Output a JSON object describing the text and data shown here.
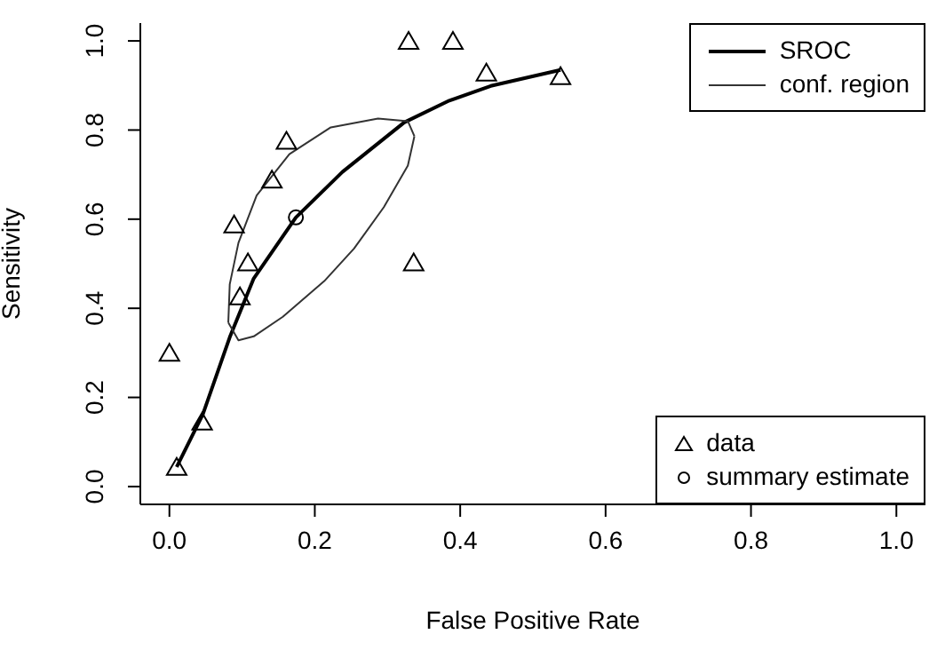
{
  "chart_data": {
    "type": "scatter",
    "xlabel": "False Positive Rate",
    "ylabel": "Sensitivity",
    "xlim": [
      -0.04,
      1.04
    ],
    "ylim": [
      -0.04,
      1.04
    ],
    "xticks": [
      {
        "value": 0,
        "label": "0.0"
      },
      {
        "value": 0.2,
        "label": "0.2"
      },
      {
        "value": 0.4,
        "label": "0.4"
      },
      {
        "value": 0.6,
        "label": "0.6"
      },
      {
        "value": 0.8,
        "label": "0.8"
      },
      {
        "value": 1,
        "label": "1.0"
      }
    ],
    "yticks": [
      {
        "value": 0,
        "label": "0.0"
      },
      {
        "value": 0.2,
        "label": "0.2"
      },
      {
        "value": 0.4,
        "label": "0.4"
      },
      {
        "value": 0.6,
        "label": "0.6"
      },
      {
        "value": 0.8,
        "label": "0.8"
      },
      {
        "value": 1,
        "label": "1.0"
      }
    ],
    "grid": false,
    "legend": "right",
    "series": [
      {
        "name": "SROC",
        "type": "line",
        "color": "#000000",
        "marker": "none",
        "x": [
          0.01,
          0.046,
          0.083,
          0.116,
          0.174,
          0.238,
          0.323,
          0.385,
          0.442,
          0.538
        ],
        "values": [
          0.044,
          0.162,
          0.335,
          0.467,
          0.604,
          0.706,
          0.817,
          0.866,
          0.899,
          0.935
        ]
      },
      {
        "name": "conf. region",
        "type": "line",
        "color": "#333333",
        "marker": "none",
        "x": [
          0.081,
          0.083,
          0.095,
          0.12,
          0.165,
          0.222,
          0.287,
          0.328,
          0.337
        ],
        "values": [
          0.368,
          0.454,
          0.547,
          0.653,
          0.746,
          0.806,
          0.826,
          0.82,
          0.786
        ]
      },
      {
        "type": "line",
        "color": "#333333",
        "marker": "none",
        "x": [
          0.081,
          0.095,
          0.116,
          0.156,
          0.213,
          0.254,
          0.295,
          0.328,
          0.337
        ],
        "values": [
          0.368,
          0.328,
          0.337,
          0.381,
          0.461,
          0.534,
          0.627,
          0.72,
          0.786
        ]
      },
      {
        "name": "data",
        "color": "#000000",
        "marker": "triangle",
        "x": [
          0.01,
          0.045,
          0.0,
          0.097,
          0.108,
          0.089,
          0.141,
          0.161,
          0.329,
          0.39,
          0.436,
          0.538,
          0.336
        ],
        "values": [
          0.044,
          0.146,
          0.3,
          0.427,
          0.503,
          0.588,
          0.689,
          0.776,
          1.0,
          1.0,
          0.929,
          0.921,
          0.503
        ]
      },
      {
        "name": "summary estimate",
        "color": "#000000",
        "marker": "circle",
        "x": [
          0.174
        ],
        "values": [
          0.604
        ]
      }
    ]
  }
}
